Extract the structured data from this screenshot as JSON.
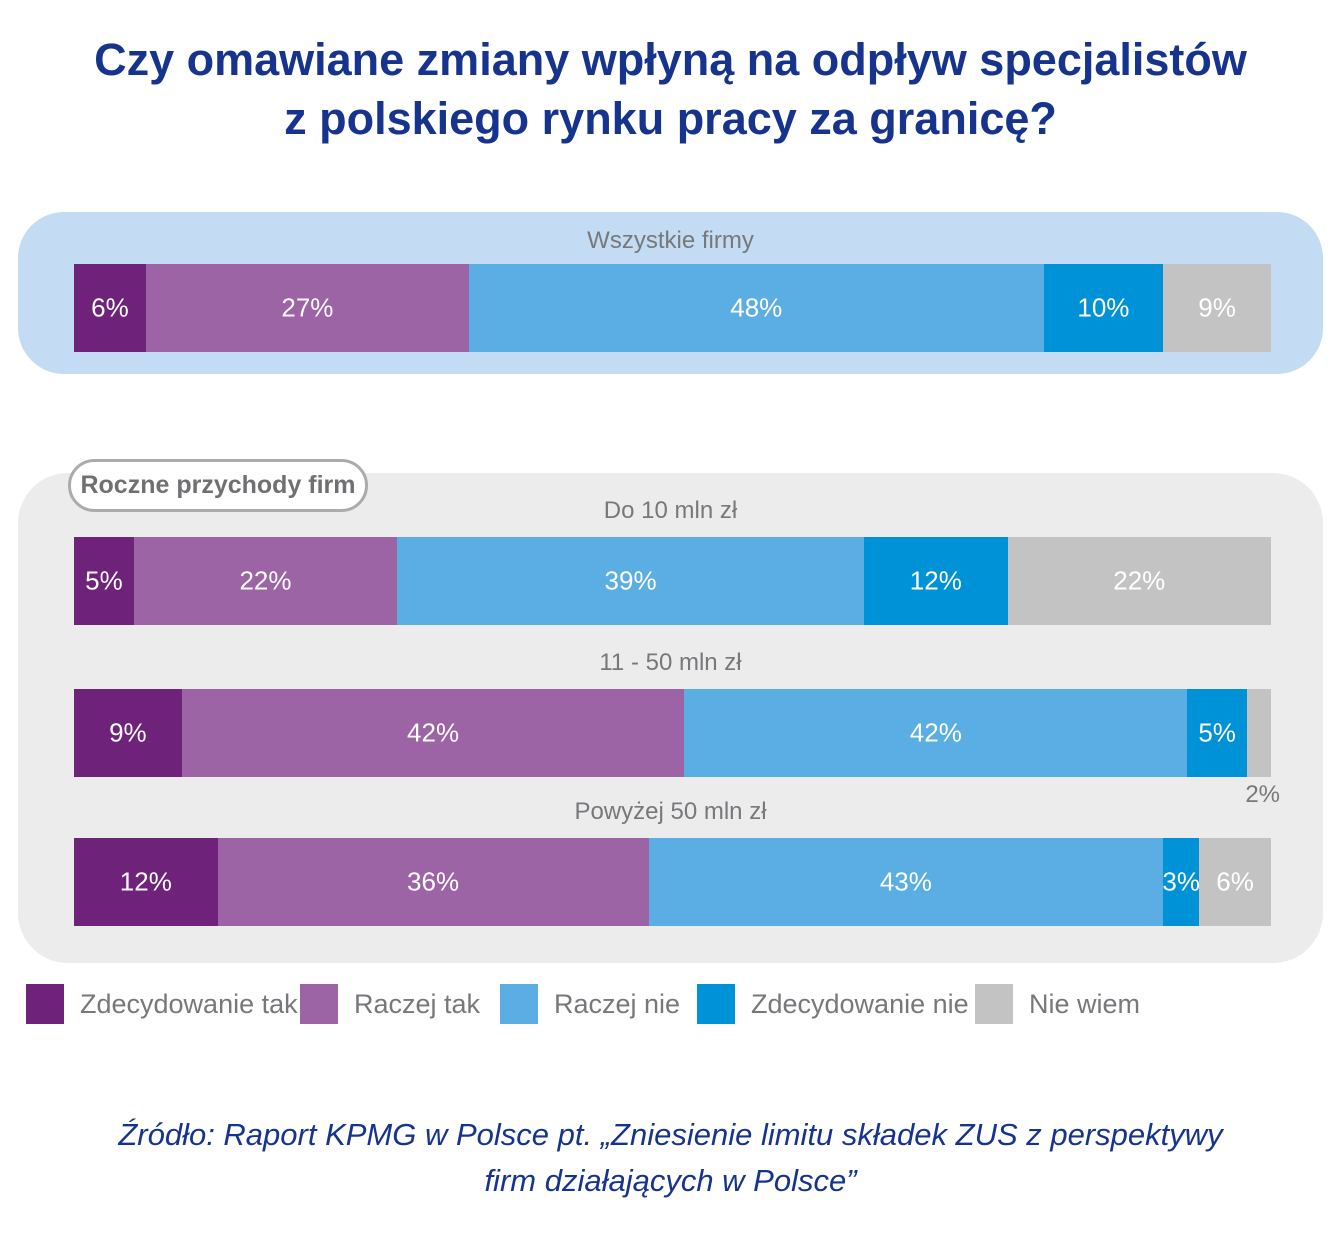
{
  "title": {
    "line1": "Czy omawiane zmiany wpłyną na odpływ specjalistów",
    "line2": "z polskiego rynku pracy za granicę?"
  },
  "revenue_badge": "Roczne przychody firm",
  "source": {
    "line1": "Źródło: Raport KPMG w Polsce pt. „Zniesienie limitu składek ZUS z perspektywy",
    "line2": "firm działających w Polsce”"
  },
  "colors": {
    "title_navy": "#16338D",
    "panel_blue": "#C3DCF3",
    "panel_gray": "#ECECEC",
    "text_gray": "#77787B",
    "badge_border": "#ABABAB"
  },
  "chart_data": {
    "type": "bar",
    "variant": "horizontal-stacked-100pct",
    "unit": "%",
    "xlim": [
      0,
      100
    ],
    "grid": false,
    "legend_position": "bottom",
    "title": "Czy omawiane zmiany wpłyną na odpływ specjalistów z polskiego rynku pracy za granicę?",
    "legend": [
      {
        "label": "Zdecydowanie tak",
        "color": "#6F2279"
      },
      {
        "label": "Raczej tak",
        "color": "#9C63A5"
      },
      {
        "label": "Raczej nie",
        "color": "#5BAEE4"
      },
      {
        "label": "Zdecydowanie nie",
        "color": "#0092D6"
      },
      {
        "label": "Nie wiem",
        "color": "#C3C3C3"
      }
    ],
    "bars": [
      {
        "group": "Wszystkie firmy",
        "panel": "all-companies",
        "values": [
          6,
          27,
          48,
          10,
          9
        ]
      },
      {
        "group": "Do 10 mln zł",
        "panel": "revenue",
        "values": [
          5,
          22,
          39,
          12,
          22
        ]
      },
      {
        "group": "11 - 50 mln zł",
        "panel": "revenue",
        "values": [
          9,
          42,
          42,
          5,
          2
        ],
        "last_label_outside": true
      },
      {
        "group": "Powyżej 50 mln zł",
        "panel": "revenue",
        "values": [
          12,
          36,
          43,
          3,
          6
        ]
      }
    ]
  }
}
